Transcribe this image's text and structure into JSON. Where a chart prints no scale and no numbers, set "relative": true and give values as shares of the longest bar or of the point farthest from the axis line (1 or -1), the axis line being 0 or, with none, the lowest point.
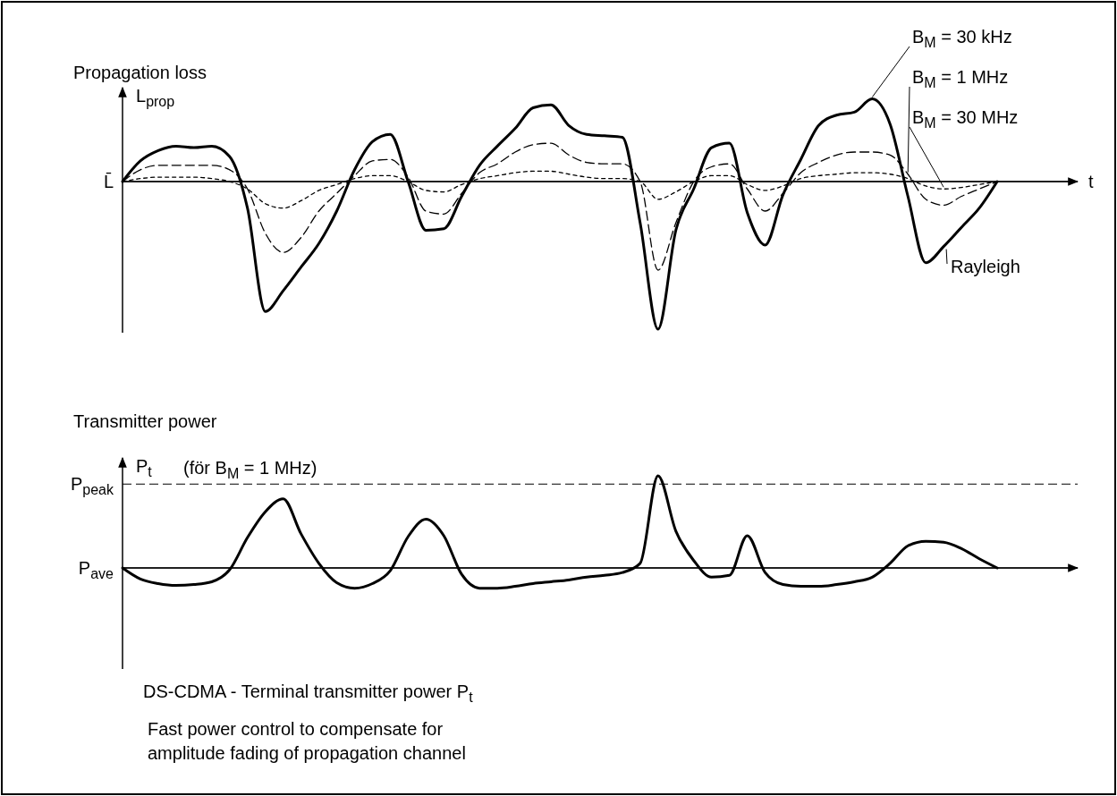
{
  "chart_data": [
    {
      "type": "line",
      "title": "Propagation loss",
      "ylabel": "L$_{prop}$",
      "xlabel": "t",
      "relative": true,
      "legend": "top right",
      "categories": [
        null,
        null,
        null,
        null,
        null,
        null,
        null,
        null,
        null,
        null,
        null,
        null,
        null,
        null,
        null,
        null,
        null,
        null,
        null,
        null,
        null,
        null,
        null,
        null,
        null,
        null,
        null,
        null,
        null,
        null,
        null,
        null,
        null,
        null,
        null,
        null,
        null,
        null,
        null,
        null,
        null,
        null,
        null,
        null,
        null,
        null,
        null,
        null,
        null,
        null
      ],
      "series": [
        {
          "name": "B$_{M}$ = 30 kHz",
          "color": "#000000",
          "line_style": "solid",
          "values": [
            0,
            0.14,
            0.21,
            0.24,
            0.23,
            0.24,
            0.17,
            -0.18,
            -0.88,
            -0.74,
            -0.58,
            -0.42,
            -0.2,
            0.08,
            0.27,
            0.32,
            0,
            -0.33,
            -0.32,
            -0.1,
            0.11,
            0.24,
            0.36,
            0.5,
            0.52,
            0.38,
            0.32,
            0.31,
            0.3,
            -0.28,
            -1,
            -0.33,
            -0.05,
            0.23,
            0.26,
            -0.21,
            -0.43,
            -0.09,
            0.15,
            0.38,
            0.45,
            0.47,
            0.56,
            0.39,
            -0.1,
            -0.55,
            -0.44,
            -0.31,
            -0.18,
            0
          ]
        },
        {
          "name": "B$_{M}$ = 1 MHz",
          "color": "#000000",
          "line_style": "dashed",
          "values": [
            0,
            0.08,
            0.11,
            0.11,
            0.11,
            0.11,
            0.08,
            -0.05,
            -0.35,
            -0.48,
            -0.38,
            -0.2,
            -0.08,
            0.04,
            0.14,
            0.15,
            0.03,
            -0.2,
            -0.22,
            -0.08,
            0.06,
            0.12,
            0.2,
            0.25,
            0.26,
            0.18,
            0.13,
            0.12,
            0.12,
            0,
            -0.6,
            -0.28,
            0,
            0.1,
            0.12,
            -0.05,
            -0.2,
            -0.08,
            0.06,
            0.13,
            0.18,
            0.2,
            0.2,
            0.18,
            0.05,
            -0.12,
            -0.16,
            -0.1,
            -0.05,
            0
          ]
        },
        {
          "name": "B$_{M}$ = 30 MHz",
          "color": "#000000",
          "line_style": "dotted",
          "values": [
            0,
            0.02,
            0.03,
            0.03,
            0.03,
            0.02,
            0,
            -0.05,
            -0.15,
            -0.18,
            -0.13,
            -0.06,
            -0.02,
            0.02,
            0.04,
            0.04,
            0,
            -0.06,
            -0.07,
            -0.02,
            0.02,
            0.04,
            0.06,
            0.07,
            0.07,
            0.05,
            0.03,
            0.02,
            0.02,
            0,
            -0.12,
            -0.07,
            0,
            0.04,
            0.04,
            -0.02,
            -0.06,
            -0.03,
            0.02,
            0.04,
            0.05,
            0.06,
            0.06,
            0.05,
            0.02,
            -0.03,
            -0.05,
            -0.04,
            -0.02,
            0
          ]
        }
      ],
      "ref_lines": [
        {
          "axis": "y",
          "value": 0,
          "label": "L̄"
        }
      ],
      "annotations": [
        "Rayleigh"
      ]
    },
    {
      "type": "line",
      "title": "Transmitter power",
      "ylabel": "P$_{t}$",
      "relative": true,
      "categories": [
        null,
        null,
        null,
        null,
        null,
        null,
        null,
        null,
        null,
        null,
        null,
        null,
        null,
        null,
        null,
        null,
        null,
        null,
        null,
        null,
        null,
        null,
        null,
        null,
        null,
        null,
        null,
        null,
        null,
        null,
        null,
        null,
        null,
        null,
        null,
        null,
        null,
        null,
        null,
        null,
        null,
        null,
        null,
        null,
        null,
        null,
        null,
        null,
        null,
        null
      ],
      "series": [
        {
          "color": "#000000",
          "line_style": "solid",
          "values": [
            0,
            -0.12,
            -0.17,
            -0.19,
            -0.18,
            -0.15,
            -0.02,
            0.33,
            0.61,
            0.75,
            0.37,
            0.05,
            -0.16,
            -0.22,
            -0.17,
            -0.03,
            0.34,
            0.53,
            0.35,
            -0.07,
            -0.22,
            -0.22,
            -0.2,
            -0.17,
            -0.15,
            -0.13,
            -0.1,
            -0.08,
            -0.05,
            0.05,
            1,
            0.4,
            0.08,
            -0.1,
            -0.08,
            0.35,
            -0.05,
            -0.18,
            -0.2,
            -0.2,
            -0.18,
            -0.15,
            -0.1,
            0.05,
            0.24,
            0.29,
            0.28,
            0.21,
            0.1,
            0
          ]
        }
      ],
      "ref_lines": [
        {
          "axis": "y",
          "value": 0,
          "label": "P$_{ave}$"
        },
        {
          "axis": "y",
          "value": 0.91,
          "label": "P$_{peak}$",
          "line_style": "dashed"
        }
      ],
      "annotations": [
        "(för B$_{M}$ = 1 MHz)",
        "DS-CDMA - Terminal transmitter power P$_{t}$",
        "Fast power control to compensate for",
        "amplitude fading of propagation channel"
      ]
    }
  ]
}
